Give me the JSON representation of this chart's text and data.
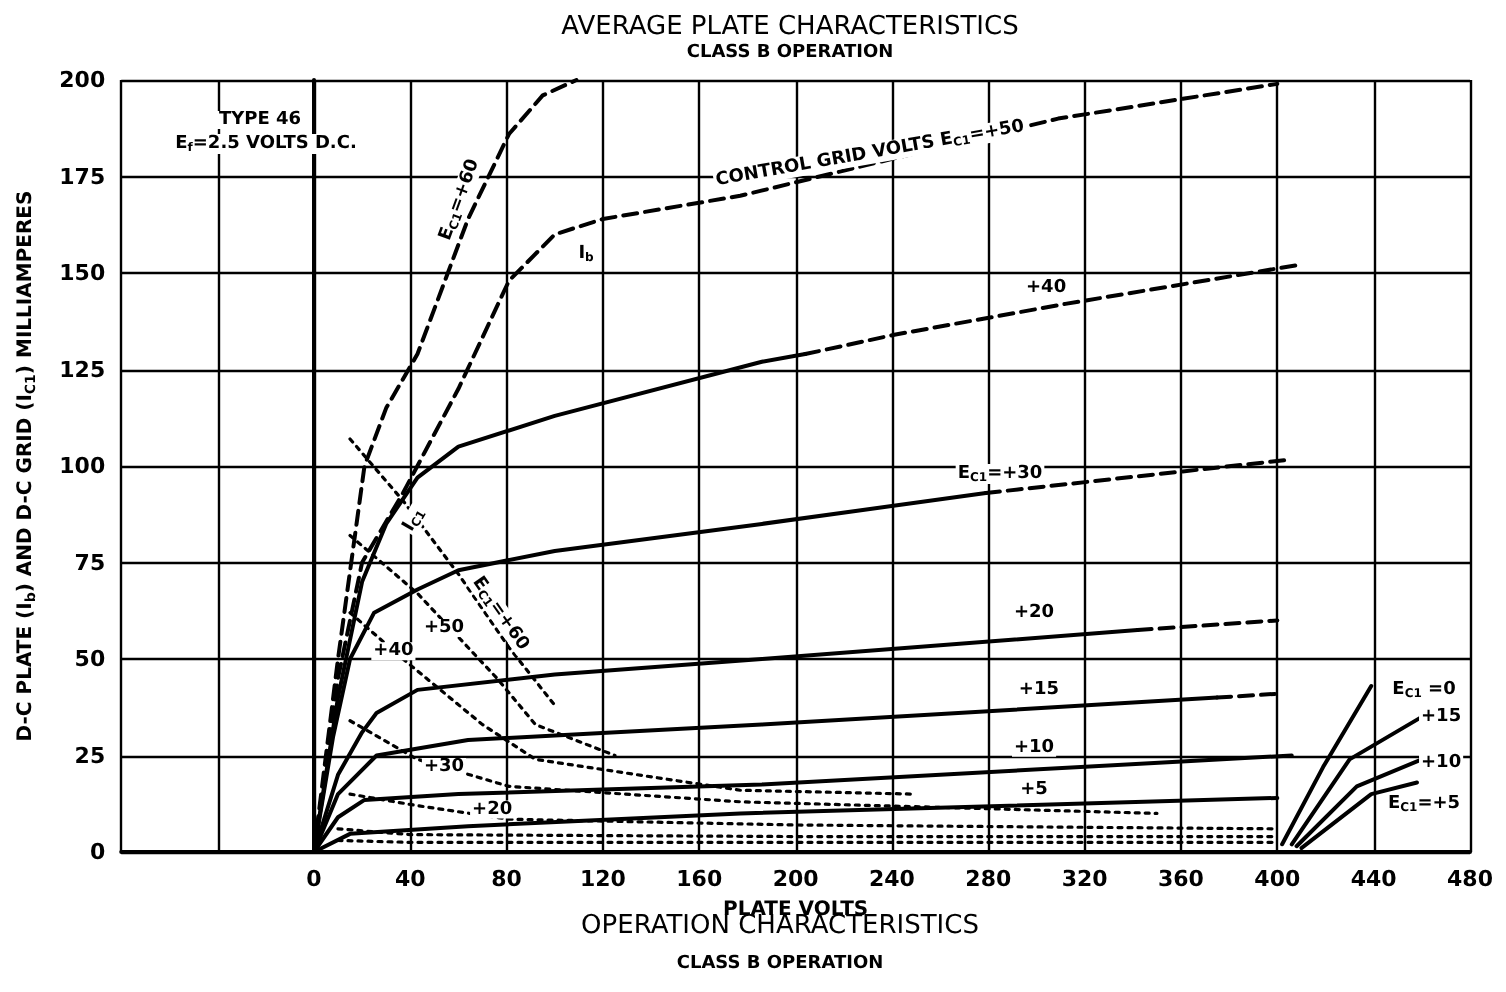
{
  "chart_data": {
    "type": "line",
    "title": "AVERAGE PLATE CHARACTERISTICS",
    "subtitle": "CLASS B OPERATION",
    "xlabel": "PLATE VOLTS",
    "ylabel": "D-C PLATE (I$_{b}$) AND D-C GRID (I$_{C1}$) MILLIAMPERES",
    "xlim": [
      -80,
      480
    ],
    "ylim": [
      0,
      200
    ],
    "xticks": [
      {
        "value": -80,
        "label": null
      },
      {
        "value": -40,
        "label": null
      },
      0,
      40,
      80,
      120,
      160,
      200,
      240,
      280,
      320,
      360,
      400,
      440,
      480
    ],
    "yticks": [
      0,
      25,
      50,
      75,
      100,
      125,
      150,
      175,
      200
    ],
    "grid": true,
    "marker": "none",
    "series": [
      {
        "color": "#000000",
        "line_style": "dashed",
        "x": [
          0,
          10,
          21,
          30,
          43,
          64,
          81,
          95,
          109
        ],
        "values": [
          0,
          50,
          100,
          115,
          129,
          164,
          186,
          196,
          200
        ]
      },
      {
        "color": "#000000",
        "line_style": "dashed",
        "x": [
          0,
          10,
          20,
          37,
          60,
          81,
          100,
          120,
          177,
          309,
          400
        ],
        "values": [
          0,
          45,
          75,
          93,
          120,
          148,
          160,
          164,
          170,
          190,
          199
        ]
      },
      {
        "color": "#000000",
        "line_style": "solid",
        "x": [
          0,
          10,
          20,
          30,
          43,
          60,
          100,
          186,
          204
        ],
        "values": [
          0,
          40,
          70,
          85,
          97,
          105,
          113,
          127,
          129
        ]
      },
      {
        "color": "#000000",
        "line_style": "dashed",
        "x": [
          204,
          241,
          312,
          408
        ],
        "values": [
          129,
          134,
          142,
          152
        ]
      },
      {
        "color": "#000000",
        "line_style": "solid",
        "x": [
          0,
          8,
          15,
          25,
          43,
          60,
          100,
          186,
          279
        ],
        "values": [
          0,
          30,
          50,
          62,
          68,
          73,
          78,
          85,
          93
        ]
      },
      {
        "color": "#000000",
        "line_style": "dashed",
        "x": [
          279,
          403
        ],
        "values": [
          93,
          101.5
        ]
      },
      {
        "color": "#000000",
        "line_style": "solid",
        "x": [
          0,
          10,
          20,
          26,
          43,
          100,
          186,
          342
        ],
        "values": [
          0,
          20,
          31,
          36,
          42,
          46,
          50,
          57.5
        ]
      },
      {
        "color": "#000000",
        "line_style": "dashed",
        "x": [
          342,
          400
        ],
        "values": [
          57.5,
          60
        ]
      },
      {
        "color": "#000000",
        "line_style": "solid",
        "x": [
          0,
          10,
          26,
          64,
          186,
          375
        ],
        "values": [
          0,
          15,
          25,
          29,
          33,
          40
        ]
      },
      {
        "color": "#000000",
        "line_style": "dashed",
        "x": [
          375,
          400
        ],
        "values": [
          40,
          41
        ]
      },
      {
        "color": "#000000",
        "line_style": "solid",
        "x": [
          0,
          10,
          21,
          60,
          186,
          406
        ],
        "values": [
          0,
          9,
          13.5,
          15,
          17.5,
          25
        ]
      },
      {
        "color": "#000000",
        "line_style": "solid",
        "x": [
          0,
          15,
          64,
          177,
          400
        ],
        "values": [
          0,
          4.7,
          6.7,
          10,
          14
        ]
      },
      {
        "color": "#000000",
        "line_style": "dotted",
        "x": [
          15,
          37,
          60,
          81,
          100
        ],
        "values": [
          107,
          91,
          72,
          53,
          38
        ]
      },
      {
        "color": "#000000",
        "line_style": "dotted",
        "x": [
          15,
          43,
          76,
          92,
          125
        ],
        "values": [
          82,
          67,
          45,
          33,
          25
        ]
      },
      {
        "color": "#000000",
        "line_style": "dotted",
        "x": [
          15,
          37,
          70,
          92,
          177,
          249
        ],
        "values": [
          62,
          50,
          33,
          24,
          16,
          15
        ]
      },
      {
        "color": "#000000",
        "line_style": "dotted",
        "x": [
          15,
          43,
          81,
          177,
          350
        ],
        "values": [
          34,
          24,
          17,
          13,
          10
        ]
      },
      {
        "color": "#000000",
        "line_style": "dotted",
        "x": [
          15,
          43,
          81,
          200,
          400
        ],
        "values": [
          15,
          12,
          8.5,
          7,
          6
        ]
      },
      {
        "color": "#000000",
        "line_style": "dotted",
        "x": [
          10,
          40,
          200,
          400
        ],
        "values": [
          6,
          4.5,
          4,
          4
        ]
      },
      {
        "color": "#000000",
        "line_style": "dotted",
        "x": [
          10,
          40,
          200,
          400
        ],
        "values": [
          3,
          2.5,
          2.5,
          2.5
        ]
      },
      {
        "color": "#000000",
        "line_style": "solid",
        "x": [
          402,
          419,
          439
        ],
        "values": [
          2,
          22,
          43
        ]
      },
      {
        "color": "#000000",
        "line_style": "solid",
        "x": [
          406,
          430,
          460
        ],
        "values": [
          2,
          24,
          35
        ]
      },
      {
        "color": "#000000",
        "line_style": "solid",
        "x": [
          408,
          433,
          460
        ],
        "values": [
          1.5,
          17,
          24
        ]
      },
      {
        "color": "#000000",
        "line_style": "solid",
        "x": [
          410,
          439,
          458
        ],
        "values": [
          1,
          15,
          18
        ]
      }
    ],
    "annotations": [
      "TYPE 46",
      "E$_{f}$=2.5 VOLTS D.C.",
      "E$_{C1}$=+60",
      "CONTROL GRID VOLTS E$_{C1}$=+50",
      "I$_{b}$",
      {
        "text": "+40",
        "x": 304,
        "y": 146
      },
      "E$_{C1}$=+30",
      {
        "text": "+20",
        "x": 299,
        "y": 62
      },
      {
        "text": "+15",
        "x": 301,
        "y": 42
      },
      {
        "text": "+10",
        "x": 299,
        "y": 27
      },
      {
        "text": "+5",
        "x": 299,
        "y": 16
      },
      "I$_{C1}$",
      "E$_{C1}$=+60",
      {
        "text": "+50",
        "x": 54,
        "y": 58
      },
      {
        "text": "+40",
        "x": 33,
        "y": 52
      },
      {
        "text": "+30",
        "x": 54,
        "y": 22
      },
      {
        "text": "+20",
        "x": 74,
        "y": 11
      },
      "E$_{C1}$ =0",
      {
        "text": "+15",
        "x": 468,
        "y": 35
      },
      {
        "text": "+10",
        "x": 468,
        "y": 23
      },
      "E$_{C1}$=+5",
      "OPERATION CHARACTERISTICS",
      "CLASS B OPERATION"
    ]
  }
}
